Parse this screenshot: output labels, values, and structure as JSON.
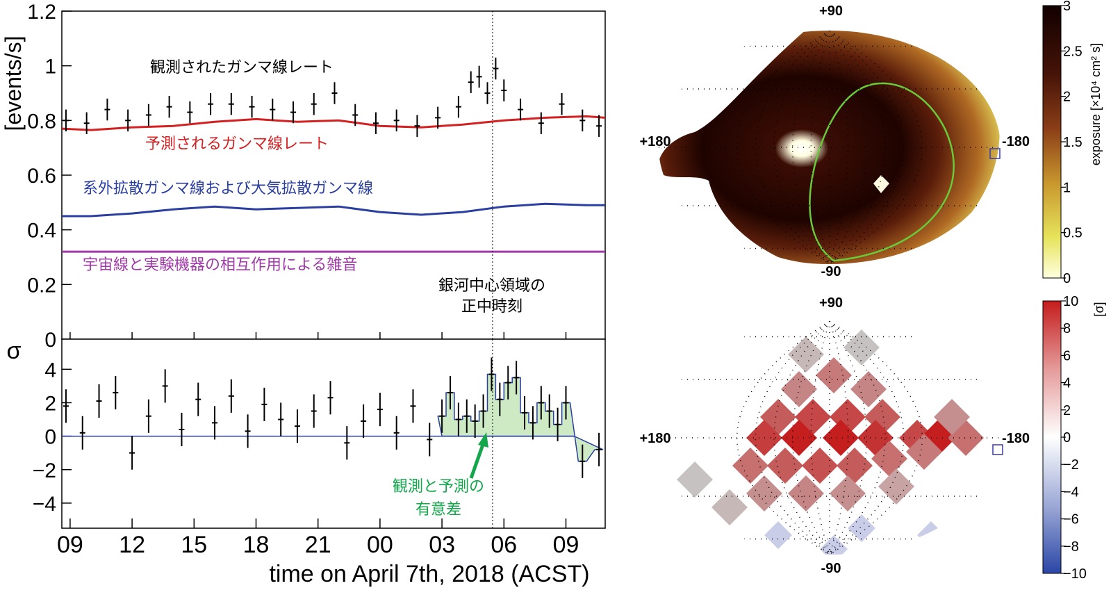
{
  "chart_data": [
    {
      "type": "line",
      "panel": "rate",
      "ylabel": "[events/s]",
      "ylim": [
        0,
        1.2
      ],
      "yticks": [
        "0",
        "0.2",
        "0.4",
        "0.6",
        "0.8",
        "1",
        "1.2"
      ],
      "tick_values": [
        0,
        0.2,
        0.4,
        0.6,
        0.8,
        1.0,
        1.2
      ],
      "xlim_hours": [
        8.6,
        34.9
      ],
      "annotations": {
        "observed": "観測されたガンマ線レート",
        "predicted": "予測されるガンマ線レート",
        "diffuse": "系外拡散ガンマ線および大気拡散ガンマ線",
        "noise": "宇宙線と実験機器の相互作用による雑音",
        "transit_line1": "銀河中心領域の",
        "transit_line2": "正中時刻"
      },
      "series": [
        {
          "key": "predicted",
          "color": "#d42020",
          "x": [
            8.6,
            10,
            12,
            14,
            16,
            18,
            20,
            22,
            24,
            26,
            28,
            30,
            32,
            34,
            34.9
          ],
          "values": [
            0.77,
            0.765,
            0.775,
            0.78,
            0.795,
            0.805,
            0.795,
            0.8,
            0.78,
            0.775,
            0.785,
            0.8,
            0.81,
            0.815,
            0.81
          ]
        },
        {
          "key": "diffuse",
          "color": "#2a3fa0",
          "x": [
            8.6,
            10,
            12,
            14,
            16,
            18,
            20,
            22,
            24,
            26,
            28,
            30,
            32,
            34,
            34.9
          ],
          "values": [
            0.45,
            0.45,
            0.46,
            0.475,
            0.485,
            0.475,
            0.48,
            0.485,
            0.465,
            0.455,
            0.465,
            0.485,
            0.495,
            0.49,
            0.49
          ]
        },
        {
          "key": "noise",
          "color": "#a03aa8",
          "x": [
            8.6,
            34.9
          ],
          "values": [
            0.32,
            0.32
          ]
        }
      ],
      "observed_points": {
        "x": [
          8.8,
          9.8,
          10.8,
          11.8,
          12.8,
          13.8,
          14.8,
          15.8,
          16.8,
          17.8,
          18.8,
          19.8,
          20.8,
          21.8,
          22.8,
          23.8,
          24.8,
          25.8,
          26.8,
          27.8,
          28.4,
          28.8,
          29.2,
          29.6,
          30.0,
          30.8,
          31.8,
          32.8,
          33.8,
          34.6
        ],
        "y": [
          0.8,
          0.79,
          0.84,
          0.8,
          0.82,
          0.85,
          0.83,
          0.86,
          0.86,
          0.85,
          0.84,
          0.83,
          0.86,
          0.9,
          0.82,
          0.79,
          0.8,
          0.78,
          0.81,
          0.85,
          0.94,
          0.96,
          0.9,
          0.99,
          0.91,
          0.84,
          0.79,
          0.86,
          0.8,
          0.78
        ],
        "err": 0.04
      },
      "vline_hours": 29.45
    },
    {
      "type": "scatter",
      "panel": "significance",
      "ylabel": "σ",
      "ylim": [
        -5.5,
        5.8
      ],
      "yticks": [
        "−4",
        "−2",
        "0",
        "2",
        "4"
      ],
      "tick_values": [
        -4,
        -2,
        0,
        2,
        4
      ],
      "xlabel": "time on April 7th, 2018 (ACST)",
      "xticks": [
        "09",
        "12",
        "15",
        "18",
        "21",
        "00",
        "03",
        "06",
        "09"
      ],
      "xtick_hours": [
        9,
        12,
        15,
        18,
        21,
        24,
        27,
        30,
        33
      ],
      "xlim_hours": [
        8.6,
        34.9
      ],
      "x": [
        8.8,
        9.6,
        10.4,
        11.2,
        12.0,
        12.8,
        13.6,
        14.4,
        15.2,
        16.0,
        16.8,
        17.6,
        18.4,
        19.2,
        20.0,
        20.8,
        21.6,
        22.4,
        23.2,
        24.0,
        24.8,
        25.6,
        26.4,
        27.0,
        27.4,
        27.8,
        28.2,
        28.6,
        29.0,
        29.4,
        29.8,
        30.2,
        30.6,
        31.0,
        31.4,
        31.8,
        32.2,
        32.6,
        33.0,
        33.8,
        34.6
      ],
      "values": [
        1.8,
        0.2,
        2.1,
        2.6,
        -1.0,
        1.2,
        3.0,
        0.4,
        2.2,
        0.8,
        2.4,
        0.3,
        1.9,
        1.0,
        0.6,
        1.5,
        2.3,
        -0.4,
        0.9,
        1.6,
        0.2,
        1.8,
        -0.2,
        1.2,
        2.6,
        1.0,
        1.2,
        0.9,
        1.5,
        3.7,
        2.2,
        3.2,
        3.5,
        1.4,
        0.8,
        2.0,
        1.5,
        0.7,
        2.0,
        -1.5,
        -0.8
      ],
      "err": 1.0,
      "excess_fill_color": "#cdeac4",
      "arrow_label_line1": "観測と予測の",
      "arrow_label_line2": "有意差",
      "arrow_color": "#13a64a"
    },
    {
      "type": "heatmap",
      "panel": "exposure-map",
      "projection": "hammer",
      "colorbar_label": "exposure [×10⁴ cm² s]",
      "colorbar_ticks": [
        "0",
        "0.5",
        "1",
        "1.5",
        "2",
        "2.5",
        "3"
      ],
      "axis_labels": {
        "top": "+90",
        "bottom": "-90",
        "left": "+180",
        "right": "-180"
      },
      "contour_color": "#6acb3a",
      "marker_color": "#3a3aa8"
    },
    {
      "type": "heatmap",
      "panel": "significance-map",
      "projection": "hammer",
      "colorbar_label": "[σ]",
      "colorbar_ticks": [
        "10",
        "8",
        "6",
        "4",
        "2",
        "0",
        "−2",
        "−4",
        "−6",
        "−8",
        "−10"
      ],
      "axis_labels": {
        "top": "+90",
        "bottom": "-90",
        "left": "+180",
        "right": "-180"
      },
      "marker_color": "#3a3aa8"
    }
  ],
  "palettes": {
    "exposure": [
      "#ffffe0",
      "#e9e86a",
      "#c8a03c",
      "#8a4a1e",
      "#4a1a0a",
      "#180000"
    ],
    "sigma": [
      "#2a4aa8",
      "#ffffff",
      "#c81e1e"
    ]
  }
}
